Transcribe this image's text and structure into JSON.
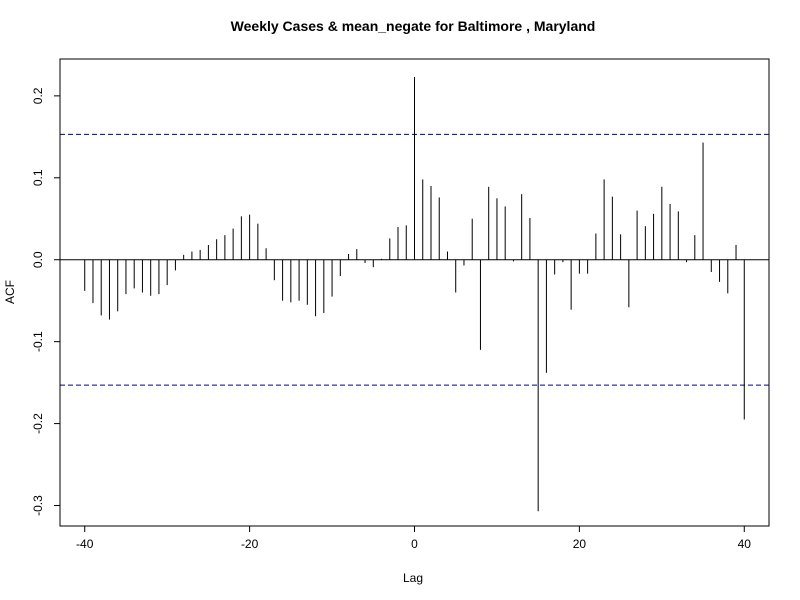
{
  "chart_data": {
    "type": "bar",
    "title": "Weekly Cases & mean_negate for Baltimore , Maryland",
    "xlabel": "Lag",
    "ylabel": "ACF",
    "xlim": [
      -43,
      43
    ],
    "ylim": [
      -0.325,
      0.245
    ],
    "x_ticks": [
      -40,
      -20,
      0,
      20,
      40
    ],
    "x_tick_labels": [
      "-40",
      "-20",
      "0",
      "20",
      "40"
    ],
    "y_ticks": [
      -0.3,
      -0.2,
      -0.1,
      0.0,
      0.1,
      0.2
    ],
    "y_tick_labels": [
      "-0.3",
      "-0.2",
      "-0.1",
      "0.0",
      "0.1",
      "0.2"
    ],
    "confidence_bound": 0.153,
    "lags": [
      -40,
      -39,
      -38,
      -37,
      -36,
      -35,
      -34,
      -33,
      -32,
      -31,
      -30,
      -29,
      -28,
      -27,
      -26,
      -25,
      -24,
      -23,
      -22,
      -21,
      -20,
      -19,
      -18,
      -17,
      -16,
      -15,
      -14,
      -13,
      -12,
      -11,
      -10,
      -9,
      -8,
      -7,
      -6,
      -5,
      -4,
      -3,
      -2,
      -1,
      0,
      1,
      2,
      3,
      4,
      5,
      6,
      7,
      8,
      9,
      10,
      11,
      12,
      13,
      14,
      15,
      16,
      17,
      18,
      19,
      20,
      21,
      22,
      23,
      24,
      25,
      26,
      27,
      28,
      29,
      30,
      31,
      32,
      33,
      34,
      35,
      36,
      37,
      38,
      39,
      40
    ],
    "values": [
      -0.038,
      -0.053,
      -0.068,
      -0.073,
      -0.063,
      -0.042,
      -0.035,
      -0.04,
      -0.044,
      -0.042,
      -0.031,
      -0.013,
      0.006,
      0.01,
      0.012,
      0.018,
      0.025,
      0.03,
      0.038,
      0.053,
      0.055,
      0.044,
      0.014,
      -0.025,
      -0.05,
      -0.052,
      -0.05,
      -0.055,
      -0.069,
      -0.065,
      -0.045,
      -0.02,
      0.007,
      0.013,
      -0.004,
      -0.009,
      0.001,
      0.026,
      0.04,
      0.042,
      0.223,
      0.098,
      0.09,
      0.076,
      0.01,
      -0.04,
      -0.007,
      0.05,
      -0.11,
      0.089,
      0.075,
      0.065,
      -0.002,
      0.08,
      0.051,
      -0.307,
      -0.138,
      -0.018,
      -0.003,
      -0.061,
      -0.017,
      -0.017,
      0.032,
      0.098,
      0.077,
      0.031,
      -0.058,
      0.06,
      0.041,
      0.056,
      0.089,
      0.068,
      0.059,
      -0.003,
      0.03,
      0.143,
      -0.015,
      -0.027,
      -0.041,
      0.018,
      -0.195
    ],
    "grid": false,
    "colors": {
      "bars": "#000000",
      "bounds": "#00008b",
      "zero_line": "#000000"
    }
  }
}
